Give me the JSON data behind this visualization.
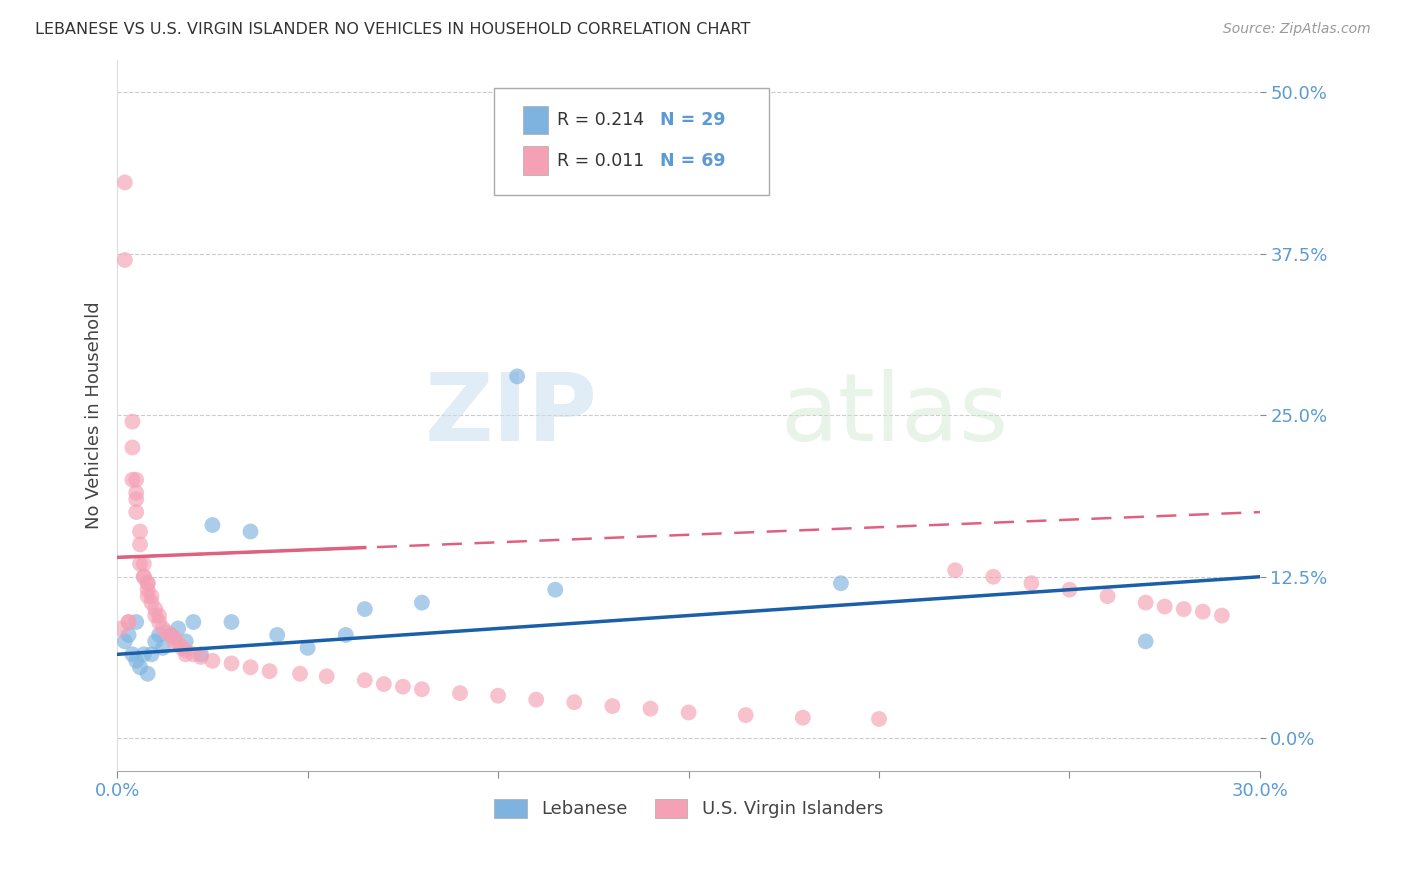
{
  "title": "LEBANESE VS U.S. VIRGIN ISLANDER NO VEHICLES IN HOUSEHOLD CORRELATION CHART",
  "source": "Source: ZipAtlas.com",
  "ylabel": "No Vehicles in Household",
  "xlim": [
    0.0,
    0.3
  ],
  "ylim": [
    -0.025,
    0.525
  ],
  "yticks": [
    0.0,
    0.125,
    0.25,
    0.375,
    0.5
  ],
  "ytick_labels": [
    "0.0%",
    "12.5%",
    "25.0%",
    "37.5%",
    "50.0%"
  ],
  "gridline_color": "#cccccc",
  "background_color": "#ffffff",
  "watermark_zip": "ZIP",
  "watermark_atlas": "atlas",
  "blue_color": "#7eb3e0",
  "pink_color": "#f4a0b5",
  "trendline_blue_color": "#1a5fa8",
  "trendline_pink_color": "#e06080",
  "axis_label_color": "#5b9bd5",
  "legend_text_color": "#333333",
  "legend_value_color": "#5b9bd5",
  "lebanese_x": [
    0.002,
    0.003,
    0.004,
    0.005,
    0.005,
    0.006,
    0.007,
    0.008,
    0.009,
    0.01,
    0.011,
    0.012,
    0.014,
    0.016,
    0.018,
    0.02,
    0.022,
    0.025,
    0.03,
    0.035,
    0.042,
    0.05,
    0.06,
    0.065,
    0.08,
    0.105,
    0.115,
    0.19,
    0.27
  ],
  "lebanese_y": [
    0.075,
    0.08,
    0.065,
    0.09,
    0.06,
    0.055,
    0.065,
    0.05,
    0.065,
    0.075,
    0.08,
    0.07,
    0.08,
    0.085,
    0.075,
    0.09,
    0.065,
    0.165,
    0.09,
    0.16,
    0.08,
    0.07,
    0.08,
    0.1,
    0.105,
    0.28,
    0.115,
    0.12,
    0.075
  ],
  "virgin_x": [
    0.001,
    0.002,
    0.002,
    0.003,
    0.003,
    0.004,
    0.004,
    0.004,
    0.005,
    0.005,
    0.005,
    0.005,
    0.006,
    0.006,
    0.006,
    0.007,
    0.007,
    0.007,
    0.008,
    0.008,
    0.008,
    0.008,
    0.009,
    0.009,
    0.01,
    0.01,
    0.011,
    0.011,
    0.012,
    0.013,
    0.014,
    0.015,
    0.015,
    0.016,
    0.017,
    0.018,
    0.018,
    0.02,
    0.022,
    0.025,
    0.03,
    0.035,
    0.04,
    0.048,
    0.055,
    0.065,
    0.07,
    0.075,
    0.08,
    0.09,
    0.1,
    0.11,
    0.12,
    0.13,
    0.14,
    0.15,
    0.165,
    0.18,
    0.2,
    0.22,
    0.23,
    0.24,
    0.25,
    0.26,
    0.27,
    0.275,
    0.28,
    0.285,
    0.29
  ],
  "virgin_y": [
    0.085,
    0.43,
    0.37,
    0.09,
    0.09,
    0.245,
    0.225,
    0.2,
    0.2,
    0.19,
    0.185,
    0.175,
    0.16,
    0.15,
    0.135,
    0.135,
    0.125,
    0.125,
    0.12,
    0.12,
    0.115,
    0.11,
    0.11,
    0.105,
    0.1,
    0.095,
    0.095,
    0.09,
    0.085,
    0.082,
    0.08,
    0.078,
    0.075,
    0.074,
    0.07,
    0.068,
    0.065,
    0.065,
    0.063,
    0.06,
    0.058,
    0.055,
    0.052,
    0.05,
    0.048,
    0.045,
    0.042,
    0.04,
    0.038,
    0.035,
    0.033,
    0.03,
    0.028,
    0.025,
    0.023,
    0.02,
    0.018,
    0.016,
    0.015,
    0.13,
    0.125,
    0.12,
    0.115,
    0.11,
    0.105,
    0.102,
    0.1,
    0.098,
    0.095
  ]
}
